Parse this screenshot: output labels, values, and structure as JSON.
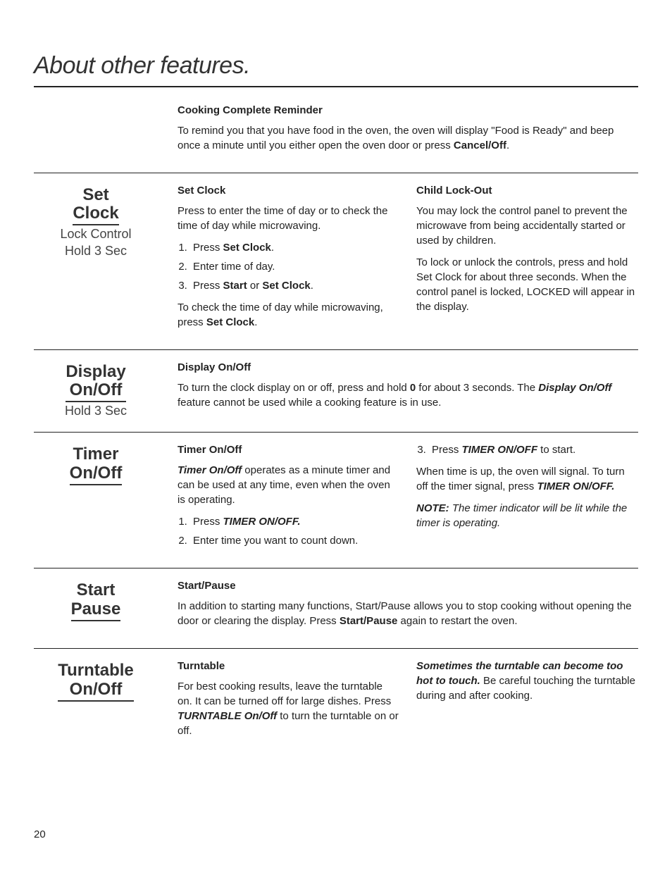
{
  "page_title": "About other features.",
  "page_number": "20",
  "intro": {
    "heading": "Cooking Complete Reminder",
    "text_a": "To remind you that you have food in the oven, the oven will display \"Food is Ready\" and beep once a minute until you either open the oven door or press ",
    "text_b": "Cancel/Off",
    "text_c": "."
  },
  "set_clock": {
    "btn_line1": "Set",
    "btn_line2": "Clock",
    "btn_sub1": "Lock Control",
    "btn_sub2": "Hold 3 Sec",
    "left_heading": "Set Clock",
    "left_intro": "Press to enter the time of day or to check the time of day while microwaving.",
    "step1_a": "Press ",
    "step1_b": "Set Clock",
    "step1_c": ".",
    "step2": "Enter time of day.",
    "step3_a": "Press ",
    "step3_b": "Start",
    "step3_c": " or ",
    "step3_d": "Set Clock",
    "step3_e": ".",
    "left_tail_a": "To check the time of day while microwaving, press ",
    "left_tail_b": "Set Clock",
    "left_tail_c": ".",
    "right_heading": "Child Lock-Out",
    "right_p1": "You may lock the control panel to prevent the microwave from being accidentally started or used by children.",
    "right_p2": "To lock or unlock the controls, press and hold Set Clock for about three seconds. When the control panel is locked, LOCKED will appear in the display."
  },
  "display": {
    "btn_line1": "Display",
    "btn_line2": "On/Off",
    "btn_sub1": "Hold 3 Sec",
    "heading": "Display On/Off",
    "text_a": "To turn the clock display on or off, press and hold ",
    "text_b": "0",
    "text_c": " for about 3 seconds. The ",
    "text_d": "Display On/Off",
    "text_e": " feature cannot be used while a cooking feature is in use."
  },
  "timer": {
    "btn_line1": "Timer",
    "btn_line2": "On/Off",
    "heading": "Timer On/Off",
    "intro_a": "Timer On/Off",
    "intro_b": " operates as a minute timer and can be used at any time, even when the oven is operating.",
    "step1_a": "Press ",
    "step1_b": "TIMER ON/OFF.",
    "step2": "Enter time you want to count down.",
    "step3_a": "Press ",
    "step3_b": "TIMER ON/OFF",
    "step3_c": " to start.",
    "right_p1_a": "When time is up, the oven will signal. To turn off the timer signal, press ",
    "right_p1_b": "TIMER ON/OFF.",
    "note_a": "NOTE:",
    "note_b": " The timer indicator will be lit while the timer is operating."
  },
  "start": {
    "btn_line1": "Start",
    "btn_line2": "Pause",
    "heading": "Start/Pause",
    "text_a": "In addition to starting many functions, Start/Pause allows you to stop cooking without opening the door or clearing the display. Press ",
    "text_b": "Start/Pause",
    "text_c": " again to restart the oven."
  },
  "turntable": {
    "btn_line1": "Turntable",
    "btn_line2": "On/Off",
    "heading": "Turntable",
    "left_a": "For best cooking results, leave the turntable on. It can be turned off for large dishes. Press ",
    "left_b": "TURNTABLE On/Off",
    "left_c": " to turn the turntable on or off.",
    "right_a": "Sometimes the turntable can become too hot to touch.",
    "right_b": " Be careful touching the turntable during and after cooking."
  }
}
